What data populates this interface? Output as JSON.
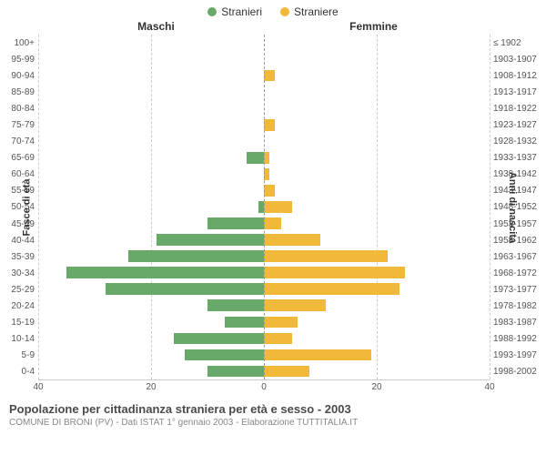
{
  "legend": {
    "male": {
      "label": "Stranieri",
      "color": "#68a868"
    },
    "female": {
      "label": "Straniere",
      "color": "#f0b93a"
    }
  },
  "headers": {
    "left": "Maschi",
    "right": "Femmine"
  },
  "axes": {
    "left_label": "Fasce di età",
    "right_label": "Anni di nascita",
    "xmax": 40,
    "xticks": [
      40,
      20,
      0,
      20,
      40
    ]
  },
  "colors": {
    "male_bar": "#68a868",
    "female_bar": "#f0b93a",
    "grid": "#cccccc",
    "center": "#999999",
    "bg": "#ffffff"
  },
  "rows": [
    {
      "age": "100+",
      "birth": "≤ 1902",
      "m": 0,
      "f": 0
    },
    {
      "age": "95-99",
      "birth": "1903-1907",
      "m": 0,
      "f": 0
    },
    {
      "age": "90-94",
      "birth": "1908-1912",
      "m": 0,
      "f": 2
    },
    {
      "age": "85-89",
      "birth": "1913-1917",
      "m": 0,
      "f": 0
    },
    {
      "age": "80-84",
      "birth": "1918-1922",
      "m": 0,
      "f": 0
    },
    {
      "age": "75-79",
      "birth": "1923-1927",
      "m": 0,
      "f": 2
    },
    {
      "age": "70-74",
      "birth": "1928-1932",
      "m": 0,
      "f": 0
    },
    {
      "age": "65-69",
      "birth": "1933-1937",
      "m": 3,
      "f": 1
    },
    {
      "age": "60-64",
      "birth": "1938-1942",
      "m": 0,
      "f": 1
    },
    {
      "age": "55-59",
      "birth": "1943-1947",
      "m": 0,
      "f": 2
    },
    {
      "age": "50-54",
      "birth": "1948-1952",
      "m": 1,
      "f": 5
    },
    {
      "age": "45-49",
      "birth": "1953-1957",
      "m": 10,
      "f": 3
    },
    {
      "age": "40-44",
      "birth": "1958-1962",
      "m": 19,
      "f": 10
    },
    {
      "age": "35-39",
      "birth": "1963-1967",
      "m": 24,
      "f": 22
    },
    {
      "age": "30-34",
      "birth": "1968-1972",
      "m": 35,
      "f": 25
    },
    {
      "age": "25-29",
      "birth": "1973-1977",
      "m": 28,
      "f": 24
    },
    {
      "age": "20-24",
      "birth": "1978-1982",
      "m": 10,
      "f": 11
    },
    {
      "age": "15-19",
      "birth": "1983-1987",
      "m": 7,
      "f": 6
    },
    {
      "age": "10-14",
      "birth": "1988-1992",
      "m": 16,
      "f": 5
    },
    {
      "age": "5-9",
      "birth": "1993-1997",
      "m": 14,
      "f": 19
    },
    {
      "age": "0-4",
      "birth": "1998-2002",
      "m": 10,
      "f": 8
    }
  ],
  "footer": {
    "title": "Popolazione per cittadinanza straniera per età e sesso - 2003",
    "sub": "COMUNE DI BRONI (PV) - Dati ISTAT 1° gennaio 2003 - Elaborazione TUTTITALIA.IT"
  }
}
